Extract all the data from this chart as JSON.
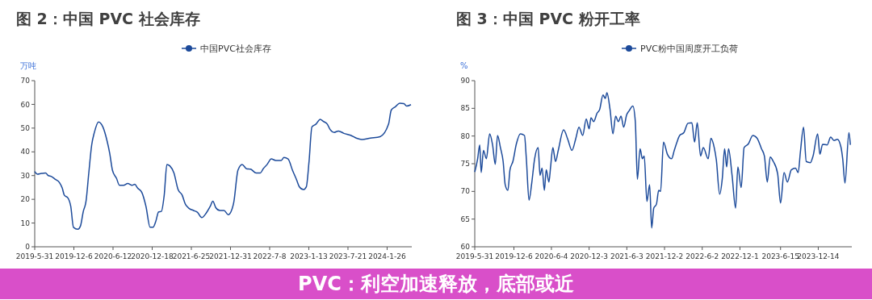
{
  "chart_data": [
    {
      "type": "line",
      "title": "图 2：中国 PVC 社会库存",
      "ylabel": "万吨",
      "legend": "top",
      "xlim": [
        "2019-05-31",
        "2024-05-24"
      ],
      "ylim": [
        0,
        70
      ],
      "yticks": [
        0,
        10,
        20,
        30,
        40,
        50,
        60,
        70
      ],
      "xticks": [
        {
          "value": "2019-05-31",
          "label": "2019-5-31"
        },
        {
          "value": "2019-12-06",
          "label": "2019-12-6"
        },
        {
          "value": "2020-06-12",
          "label": "2020-6-12"
        },
        {
          "value": "2020-12-18",
          "label": "2020-12-18"
        },
        {
          "value": "2021-06-25",
          "label": "2021-6-25"
        },
        {
          "value": "2021-12-31",
          "label": "2021-12-31"
        },
        {
          "value": "2022-07-08",
          "label": "2022-7-8"
        },
        {
          "value": "2023-01-13",
          "label": "2023-1-13"
        },
        {
          "value": "2023-07-21",
          "label": "2023-7-21"
        },
        {
          "value": "2024-01-26",
          "label": "2024-1-26"
        }
      ],
      "x": [
        "2019-05-31",
        "2019-06-12",
        "2019-07-02",
        "2019-07-22",
        "2019-08-05",
        "2019-08-18",
        "2019-09-08",
        "2019-09-28",
        "2019-10-11",
        "2019-10-21",
        "2019-11-07",
        "2019-11-21",
        "2019-12-04",
        "2019-12-25",
        "2020-01-07",
        "2020-01-20",
        "2020-02-03",
        "2020-02-16",
        "2020-03-01",
        "2020-03-14",
        "2020-04-03",
        "2020-04-24",
        "2020-05-14",
        "2020-05-27",
        "2020-06-09",
        "2020-06-29",
        "2020-07-13",
        "2020-08-02",
        "2020-08-22",
        "2020-09-12",
        "2020-09-25",
        "2020-10-09",
        "2020-10-29",
        "2020-11-18",
        "2020-12-08",
        "2020-12-22",
        "2021-01-04",
        "2021-01-18",
        "2021-01-31",
        "2021-02-14",
        "2021-02-27",
        "2021-03-13",
        "2021-04-02",
        "2021-04-22",
        "2021-05-12",
        "2021-05-26",
        "2021-06-15",
        "2021-07-05",
        "2021-07-25",
        "2021-08-14",
        "2021-09-04",
        "2021-09-24",
        "2021-10-07",
        "2021-10-21",
        "2021-11-10",
        "2021-11-30",
        "2021-12-20",
        "2022-01-02",
        "2022-01-16",
        "2022-02-05",
        "2022-02-25",
        "2022-03-18",
        "2022-04-07",
        "2022-05-04",
        "2022-05-24",
        "2022-06-07",
        "2022-06-26",
        "2022-07-16",
        "2022-08-06",
        "2022-09-02",
        "2022-09-15",
        "2022-10-05",
        "2022-10-26",
        "2022-11-15",
        "2022-11-28",
        "2022-12-18",
        "2023-01-01",
        "2023-01-14",
        "2023-01-28",
        "2023-02-17",
        "2023-03-09",
        "2023-03-23",
        "2023-04-12",
        "2023-04-26",
        "2023-05-16",
        "2023-06-05",
        "2023-07-01",
        "2023-08-03",
        "2023-08-30",
        "2023-09-26",
        "2023-11-06",
        "2023-12-23",
        "2024-02-02",
        "2024-02-15",
        "2024-03-06",
        "2024-03-27",
        "2024-04-16",
        "2024-04-29",
        "2024-05-20"
      ],
      "series": [
        {
          "name": "中国PVC社会库存",
          "color": "#1c4a9a",
          "values": [
            31.7,
            30.6,
            30.9,
            31.1,
            30,
            29.7,
            28.4,
            27,
            24.7,
            21.7,
            20.6,
            17,
            8.2,
            7.4,
            8.8,
            14.7,
            19.4,
            31.1,
            42.9,
            48.2,
            52.6,
            50.5,
            44.7,
            39.4,
            32.3,
            28.8,
            25.9,
            25.9,
            26.7,
            25.9,
            26.3,
            24.7,
            22.9,
            17,
            8.2,
            8.2,
            10.6,
            14.7,
            14.9,
            21.7,
            34.7,
            34.1,
            31.1,
            24.1,
            21.7,
            18.2,
            16.1,
            15.3,
            14.5,
            12.3,
            14.1,
            17,
            19.2,
            16.5,
            15.3,
            15.3,
            13.5,
            14.7,
            18.8,
            32.3,
            34.7,
            32.9,
            32.7,
            31.1,
            31.1,
            32.9,
            34.7,
            37,
            36.4,
            36.4,
            37.6,
            37,
            32.3,
            28.2,
            25.3,
            24.1,
            25.3,
            35.8,
            50.5,
            51.7,
            53.7,
            52.9,
            51.7,
            49.4,
            48.2,
            48.8,
            47.8,
            47,
            45.8,
            45.2,
            45.8,
            46.4,
            51.7,
            57.6,
            59,
            60.5,
            60.3,
            59.3,
            59.9
          ]
        }
      ]
    },
    {
      "type": "line",
      "title": "图 3：中国 PVC 粉开工率",
      "ylabel": "%",
      "legend": "top",
      "xlim": [
        "2019-05-31",
        "2024-05-24"
      ],
      "ylim": [
        60,
        90
      ],
      "yticks": [
        60,
        65,
        70,
        75,
        80,
        85,
        90
      ],
      "xticks": [
        {
          "value": "2019-05-31",
          "label": "2019-5-31"
        },
        {
          "value": "2019-12-06",
          "label": "2019-12-6"
        },
        {
          "value": "2020-06-04",
          "label": "2020-6-4"
        },
        {
          "value": "2020-12-03",
          "label": "2020-12-3"
        },
        {
          "value": "2021-06-03",
          "label": "2021-6-3"
        },
        {
          "value": "2021-12-02",
          "label": "2021-12-2"
        },
        {
          "value": "2022-06-02",
          "label": "2022-6-2"
        },
        {
          "value": "2022-12-01",
          "label": "2022-12-1"
        },
        {
          "value": "2023-06-15",
          "label": "2023-6-15"
        },
        {
          "value": "2023-12-14",
          "label": "2023-12-14"
        }
      ],
      "x": [
        "2019-05-31",
        "2019-06-14",
        "2019-06-24",
        "2019-07-01",
        "2019-07-12",
        "2019-07-26",
        "2019-08-11",
        "2019-08-25",
        "2019-09-07",
        "2019-09-18",
        "2019-10-02",
        "2019-10-15",
        "2019-10-25",
        "2019-11-07",
        "2019-11-17",
        "2019-12-01",
        "2019-12-18",
        "2020-01-06",
        "2020-01-26",
        "2020-02-04",
        "2020-02-17",
        "2020-03-01",
        "2020-03-15",
        "2020-04-01",
        "2020-04-10",
        "2020-04-20",
        "2020-05-01",
        "2020-05-10",
        "2020-05-23",
        "2020-05-31",
        "2020-06-11",
        "2020-06-24",
        "2020-07-07",
        "2020-08-02",
        "2020-08-22",
        "2020-09-11",
        "2020-09-30",
        "2020-10-15",
        "2020-11-02",
        "2020-11-19",
        "2020-12-03",
        "2020-12-12",
        "2020-12-25",
        "2021-01-10",
        "2021-01-23",
        "2021-02-08",
        "2021-02-19",
        "2021-02-27",
        "2021-03-14",
        "2021-03-28",
        "2021-04-10",
        "2021-04-23",
        "2021-05-06",
        "2021-05-19",
        "2021-06-02",
        "2021-06-15",
        "2021-07-02",
        "2021-07-14",
        "2021-07-24",
        "2021-08-06",
        "2021-08-17",
        "2021-08-26",
        "2021-09-08",
        "2021-09-21",
        "2021-10-01",
        "2021-10-11",
        "2021-10-24",
        "2021-11-04",
        "2021-11-13",
        "2021-11-27",
        "2021-12-16",
        "2022-01-05",
        "2022-01-18",
        "2022-01-31",
        "2022-02-13",
        "2022-03-05",
        "2022-03-25",
        "2022-04-13",
        "2022-04-26",
        "2022-05-09",
        "2022-05-25",
        "2022-06-07",
        "2022-07-01",
        "2022-07-14",
        "2022-07-30",
        "2022-08-09",
        "2022-08-25",
        "2022-09-07",
        "2022-09-18",
        "2022-09-28",
        "2022-10-07",
        "2022-10-24",
        "2022-11-10",
        "2022-11-21",
        "2022-12-07",
        "2022-12-21",
        "2023-01-11",
        "2023-02-01",
        "2023-02-22",
        "2023-03-15",
        "2023-03-29",
        "2023-04-12",
        "2023-04-26",
        "2023-05-11",
        "2023-06-01",
        "2023-06-15",
        "2023-07-02",
        "2023-07-18",
        "2023-08-06",
        "2023-08-26",
        "2023-09-08",
        "2023-09-19",
        "2023-10-04",
        "2023-10-17",
        "2023-11-06",
        "2023-11-19",
        "2023-12-11",
        "2023-12-22",
        "2024-01-04",
        "2024-01-26",
        "2024-02-12",
        "2024-02-28",
        "2024-03-15",
        "2024-04-01",
        "2024-04-10",
        "2024-04-21",
        "2024-05-10",
        "2024-05-17"
      ],
      "series": [
        {
          "name": "PVC粉中国周度开工负荷",
          "color": "#1c4a9a",
          "values": [
            73.5,
            75.9,
            78.4,
            73.4,
            77.4,
            75.9,
            80.4,
            78.4,
            74.9,
            80.1,
            77.9,
            75.4,
            71.2,
            70.2,
            73.9,
            75.4,
            78.6,
            80.4,
            80.1,
            75.9,
            68.4,
            71.5,
            75.9,
            77.9,
            72.9,
            74.2,
            70.2,
            73.9,
            71.7,
            74.4,
            77.9,
            75.4,
            77.4,
            81.1,
            79.4,
            77.4,
            79.6,
            81.6,
            80.1,
            83.1,
            81.3,
            83.3,
            82.6,
            84.1,
            84.8,
            87.4,
            86.8,
            87.8,
            84.8,
            80.4,
            83.6,
            82.6,
            83.6,
            81.6,
            83.8,
            84.6,
            85.4,
            82.6,
            72.2,
            77.7,
            75.9,
            76.4,
            68.2,
            71.2,
            63.4,
            67,
            67.7,
            70.2,
            70,
            78.9,
            76.7,
            75.9,
            77.4,
            78.9,
            80.1,
            80.6,
            82.3,
            82.4,
            78.9,
            82.4,
            76.4,
            77.9,
            75.9,
            79.6,
            77.9,
            75.7,
            69.5,
            72.4,
            77.7,
            74.4,
            77.7,
            72.9,
            67,
            74.4,
            70.7,
            77.9,
            78.6,
            80.1,
            79.6,
            77.7,
            76.4,
            71.7,
            76.2,
            75.4,
            73.2,
            67.9,
            73.4,
            71.7,
            73.9,
            74.2,
            73.4,
            77.2,
            81.6,
            75.4,
            75.2,
            76.4,
            80.4,
            76.7,
            78.5,
            78.4,
            79.8,
            79.2,
            79.4,
            78.1,
            75.9,
            71.5,
            80.6,
            78.4
          ]
        }
      ]
    },
    {
      "type": "other",
      "title": "PVC：利空加速释放，底部或近"
    }
  ]
}
